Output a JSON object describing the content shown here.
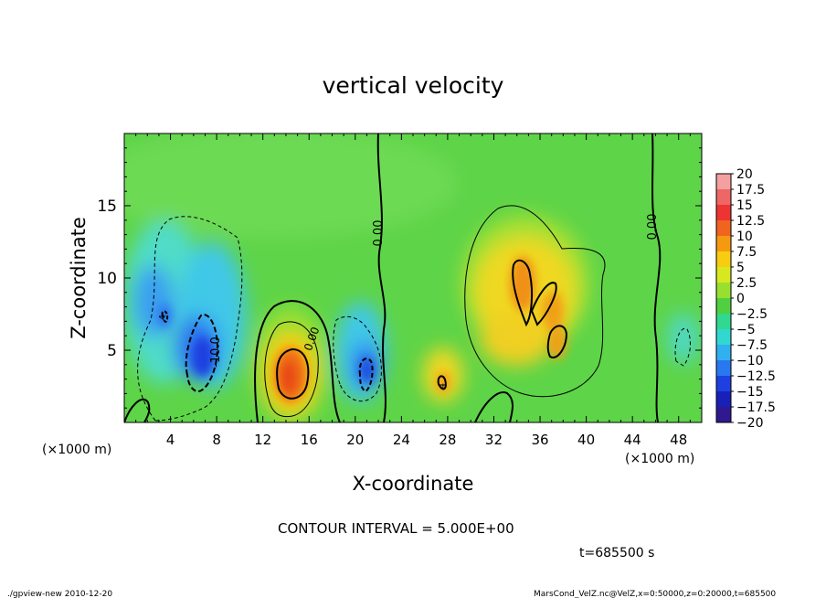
{
  "chart_data": {
    "type": "heatmap",
    "title": "vertical velocity",
    "xlabel": "X-coordinate",
    "ylabel": "Z-coordinate",
    "x_unit_left": "(×1000 m)",
    "x_unit_right": "(×1000 m)",
    "xlim": [
      0,
      50
    ],
    "ylim": [
      0,
      20
    ],
    "x_ticks": [
      4,
      8,
      12,
      16,
      20,
      24,
      28,
      32,
      36,
      40,
      44,
      48
    ],
    "y_ticks": [
      5,
      10,
      15
    ],
    "colorbar": {
      "labels": [
        "20",
        "17.5",
        "15",
        "12.5",
        "10",
        "7.5",
        "5",
        "2.5",
        "0",
        "−2.5",
        "−5",
        "−7.5",
        "−10",
        "−12.5",
        "−15",
        "−17.5",
        "−20"
      ],
      "colors": [
        "#f4a0a0",
        "#ee6666",
        "#ee3333",
        "#f06420",
        "#f59a10",
        "#f8cc10",
        "#d8e820",
        "#98e030",
        "#50d040",
        "#30d890",
        "#30d8d0",
        "#30b0f0",
        "#2878f0",
        "#1e40e0",
        "#1820b8",
        "#301890"
      ]
    },
    "contour_labels": [
      "0.00",
      "0.00",
      "0.00",
      "-10.0",
      "4",
      "4"
    ],
    "contour_interval": "CONTOUR INTERVAL = 5.000E+00",
    "time_label": "t=685500 s",
    "footer_left": "./gpview-new 2010-12-20",
    "footer_right": "MarsCond_VelZ.nc@VelZ,x=0:50000,z=0:20000,t=685500"
  }
}
